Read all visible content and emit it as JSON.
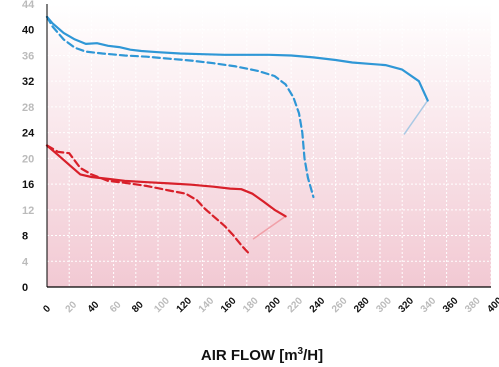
{
  "chart_data": {
    "type": "line",
    "title": "",
    "xlabel": "AIR FLOW [m³/H]",
    "xlabel_parts": {
      "main": "AIR FLOW [m",
      "sup": "3",
      "tail": "/H]"
    },
    "ylabel": "",
    "xlim": [
      0,
      400
    ],
    "ylim": [
      0,
      44
    ],
    "x_ticks": [
      {
        "value": 0,
        "label": "0",
        "major": true
      },
      {
        "value": 20,
        "label": "20",
        "major": false
      },
      {
        "value": 40,
        "label": "40",
        "major": true
      },
      {
        "value": 60,
        "label": "60",
        "major": false
      },
      {
        "value": 80,
        "label": "80",
        "major": true
      },
      {
        "value": 100,
        "label": "100",
        "major": false
      },
      {
        "value": 120,
        "label": "120",
        "major": true
      },
      {
        "value": 140,
        "label": "140",
        "major": false
      },
      {
        "value": 160,
        "label": "160",
        "major": true
      },
      {
        "value": 180,
        "label": "180",
        "major": false
      },
      {
        "value": 200,
        "label": "200",
        "major": true
      },
      {
        "value": 220,
        "label": "220",
        "major": false
      },
      {
        "value": 240,
        "label": "240",
        "major": true
      },
      {
        "value": 260,
        "label": "260",
        "major": false
      },
      {
        "value": 280,
        "label": "280",
        "major": true
      },
      {
        "value": 300,
        "label": "300",
        "major": false
      },
      {
        "value": 320,
        "label": "320",
        "major": true
      },
      {
        "value": 340,
        "label": "340",
        "major": false
      },
      {
        "value": 360,
        "label": "360",
        "major": true
      },
      {
        "value": 380,
        "label": "380",
        "major": false
      },
      {
        "value": 400,
        "label": "400",
        "major": true
      }
    ],
    "y_ticks": [
      {
        "value": 0,
        "label": "0",
        "major": true
      },
      {
        "value": 4,
        "label": "4",
        "major": false
      },
      {
        "value": 8,
        "label": "8",
        "major": true
      },
      {
        "value": 12,
        "label": "12",
        "major": false
      },
      {
        "value": 16,
        "label": "16",
        "major": true
      },
      {
        "value": 20,
        "label": "20",
        "major": false
      },
      {
        "value": 24,
        "label": "24",
        "major": true
      },
      {
        "value": 28,
        "label": "28",
        "major": false
      },
      {
        "value": 32,
        "label": "32",
        "major": true
      },
      {
        "value": 36,
        "label": "36",
        "major": false
      },
      {
        "value": 40,
        "label": "40",
        "major": true
      },
      {
        "value": 44,
        "label": "44",
        "major": false
      }
    ],
    "grid": true,
    "colors": {
      "background_top": "#ffffff",
      "background_bottom": "#f2c9d3",
      "grid": "#ffffff",
      "axis": "#000000",
      "major_tick": "#111111",
      "minor_tick": "#bbbbbb",
      "blue": "#2f97d6",
      "red": "#d8202a",
      "end_blue": "#a9c9e4",
      "end_red": "#f1a0a8"
    },
    "series": [
      {
        "id": "blue-solid",
        "color": "#2f97d6",
        "dashed": false,
        "x": [
          0,
          5,
          15,
          25,
          35,
          45,
          55,
          65,
          75,
          85,
          100,
          120,
          140,
          160,
          180,
          200,
          220,
          240,
          260,
          275,
          290,
          305,
          320,
          335,
          343
        ],
        "y": [
          42.0,
          41.0,
          39.5,
          38.5,
          37.8,
          37.9,
          37.5,
          37.3,
          36.9,
          36.7,
          36.5,
          36.3,
          36.2,
          36.1,
          36.1,
          36.1,
          36.0,
          35.7,
          35.3,
          34.9,
          34.7,
          34.5,
          33.8,
          32.0,
          29.0
        ]
      },
      {
        "id": "blue-dashed",
        "color": "#2f97d6",
        "dashed": true,
        "x": [
          0,
          5,
          15,
          25,
          35,
          50,
          70,
          90,
          110,
          130,
          150,
          170,
          190,
          205,
          215,
          222,
          227,
          230,
          232,
          235,
          240
        ],
        "y": [
          42.0,
          40.5,
          38.5,
          37.2,
          36.6,
          36.3,
          36.0,
          35.8,
          35.5,
          35.2,
          34.8,
          34.3,
          33.6,
          32.8,
          31.5,
          29.5,
          27.0,
          24.0,
          20.0,
          17.0,
          14.0
        ]
      },
      {
        "id": "red-solid",
        "color": "#d8202a",
        "dashed": false,
        "x": [
          0,
          10,
          20,
          30,
          40,
          55,
          70,
          90,
          110,
          130,
          150,
          165,
          175,
          185,
          195,
          205,
          215
        ],
        "y": [
          22.0,
          20.5,
          19.0,
          17.5,
          17.1,
          16.8,
          16.5,
          16.3,
          16.1,
          15.9,
          15.6,
          15.3,
          15.2,
          14.5,
          13.3,
          12.0,
          11.0
        ]
      },
      {
        "id": "red-dashed",
        "color": "#d8202a",
        "dashed": true,
        "x": [
          0,
          10,
          20,
          30,
          40,
          55,
          70,
          90,
          110,
          125,
          135,
          142,
          150,
          160,
          168,
          175,
          182
        ],
        "y": [
          22.0,
          21.0,
          20.8,
          18.5,
          17.5,
          16.5,
          16.2,
          15.7,
          15.0,
          14.5,
          13.5,
          12.2,
          11.0,
          9.5,
          8.0,
          6.5,
          5.2
        ]
      }
    ],
    "end_strokes": [
      {
        "id": "blue-end",
        "color": "#a9c9e4",
        "x": [
          343,
          322
        ],
        "y": [
          29.0,
          23.8
        ]
      },
      {
        "id": "red-end",
        "color": "#f1a0a8",
        "x": [
          215,
          186
        ],
        "y": [
          11.0,
          7.5
        ]
      }
    ]
  }
}
